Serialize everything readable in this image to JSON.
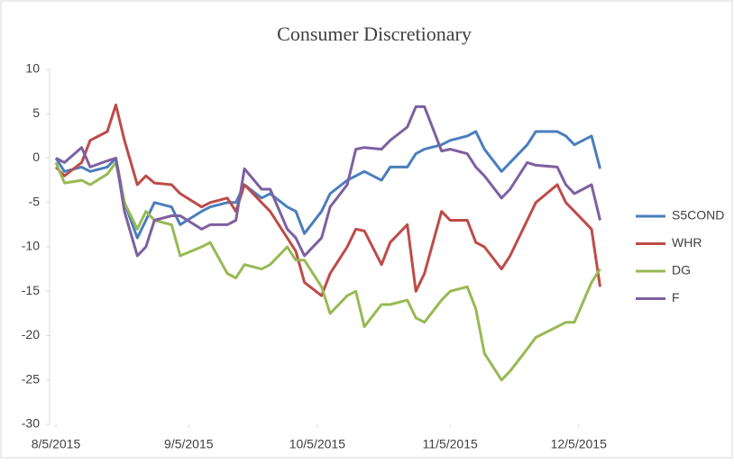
{
  "chart_data": {
    "type": "line",
    "title": "Consumer Discretionary",
    "x": [
      "8/5/2015",
      "8/7/2015",
      "8/11/2015",
      "8/13/2015",
      "8/17/2015",
      "8/19/2015",
      "8/21/2015",
      "8/24/2015",
      "8/26/2015",
      "8/28/2015",
      "9/1/2015",
      "9/3/2015",
      "9/8/2015",
      "9/10/2015",
      "9/14/2015",
      "9/16/2015",
      "9/18/2015",
      "9/22/2015",
      "9/24/2015",
      "9/28/2015",
      "9/30/2015",
      "10/2/2015",
      "10/6/2015",
      "10/8/2015",
      "10/12/2015",
      "10/14/2015",
      "10/16/2015",
      "10/20/2015",
      "10/22/2015",
      "10/26/2015",
      "10/28/2015",
      "10/30/2015",
      "11/3/2015",
      "11/5/2015",
      "11/9/2015",
      "11/11/2015",
      "11/13/2015",
      "11/17/2015",
      "11/19/2015",
      "11/23/2015",
      "11/25/2015",
      "11/30/2015",
      "12/2/2015",
      "12/4/2015",
      "12/8/2015",
      "12/10/2015"
    ],
    "series": [
      {
        "name": "S5COND",
        "color": "#4a7ebb",
        "values": [
          0,
          -1.5,
          -1,
          -1.5,
          -1,
          0,
          -5,
          -9,
          -7,
          -5,
          -5.5,
          -7.5,
          -6,
          -5.5,
          -5,
          -5,
          -3,
          -4.5,
          -4,
          -5.5,
          -6,
          -8.5,
          -6,
          -4,
          -2.5,
          -2,
          -1.5,
          -2.5,
          -1,
          -1,
          0.5,
          1,
          1.5,
          2,
          2.5,
          3,
          1,
          -1.5,
          -0.5,
          1.5,
          3,
          3,
          2.5,
          1.5,
          2.5,
          -1.2
        ]
      },
      {
        "name": "WHR",
        "color": "#be4b48",
        "values": [
          -1,
          -2,
          -0.5,
          2,
          3,
          6,
          2,
          -3,
          -2,
          -2.8,
          -3,
          -4,
          -5.5,
          -5,
          -4.5,
          -6,
          -3,
          -5,
          -6,
          -9,
          -10.5,
          -14,
          -15.5,
          -13,
          -10,
          -8,
          -8.2,
          -12,
          -9.5,
          -7.5,
          -15,
          -13,
          -6,
          -7,
          -7,
          -9.5,
          -10,
          -12.5,
          -11,
          -7,
          -5,
          -3,
          -5,
          -6,
          -8,
          -14.5
        ]
      },
      {
        "name": "DG",
        "color": "#98b954",
        "values": [
          -0.5,
          -2.8,
          -2.5,
          -3,
          -1.8,
          -0.5,
          -5,
          -8,
          -6,
          -7,
          -7.5,
          -11,
          -10,
          -9.5,
          -13,
          -13.5,
          -12,
          -12.5,
          -12,
          -10,
          -11.5,
          -11.5,
          -14.5,
          -17.5,
          -15.5,
          -15,
          -19,
          -16.5,
          -16.5,
          -16,
          -18,
          -18.5,
          -16,
          -15,
          -14.5,
          -17,
          -22,
          -25,
          -24,
          -21.5,
          -20.2,
          -19,
          -18.5,
          -18.5,
          -14,
          -12.5
        ]
      },
      {
        "name": "F",
        "color": "#7d60a0",
        "values": [
          0,
          -0.5,
          1.2,
          -1,
          -0.3,
          0,
          -6,
          -11,
          -10,
          -7,
          -6.5,
          -6.5,
          -8,
          -7.5,
          -7.5,
          -7,
          -1.2,
          -3.5,
          -3.5,
          -8,
          -9,
          -11,
          -9,
          -5.5,
          -3,
          1,
          1.2,
          1,
          2,
          3.5,
          5.8,
          5.8,
          0.8,
          1,
          0.5,
          -1,
          -2,
          -4.5,
          -3.5,
          -0.5,
          -0.8,
          -1,
          -3,
          -4,
          -3,
          -7
        ]
      }
    ],
    "xlim": [
      "8/5/2015",
      "12/12/2015"
    ],
    "xticks": [
      "8/5/2015",
      "9/5/2015",
      "10/5/2015",
      "11/5/2015",
      "12/5/2015"
    ],
    "ylim": [
      -30,
      10
    ],
    "yticks": [
      -30,
      -25,
      -20,
      -15,
      -10,
      -5,
      0,
      5,
      10
    ],
    "grid": false,
    "legend": "right"
  }
}
